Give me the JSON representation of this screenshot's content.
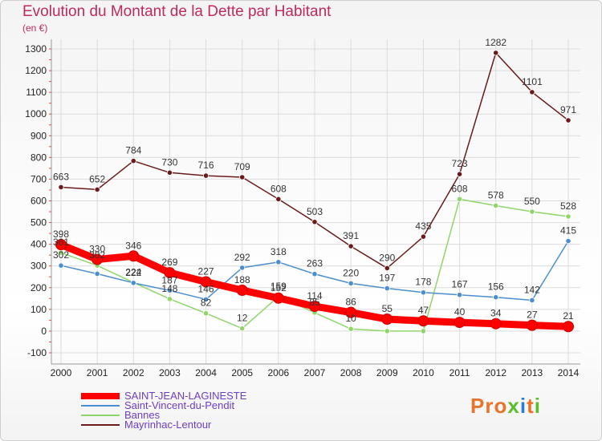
{
  "header": {
    "title": "Evolution du Montant de la Dette par Habitant",
    "subtitle": "(en €)"
  },
  "logo": {
    "text": "Proxiti",
    "colors": [
      "#e8732b",
      "#e8732b",
      "#e8732b",
      "#5bbf2a",
      "#2b7bd8",
      "#e8732b",
      "#5bbf2a"
    ]
  },
  "chart_data": {
    "type": "line",
    "title": "Evolution du Montant de la Dette par Habitant",
    "subtitle": "(en €)",
    "xlabel": "",
    "ylabel": "",
    "x": [
      2000,
      2001,
      2002,
      2003,
      2004,
      2005,
      2006,
      2007,
      2008,
      2009,
      2010,
      2011,
      2012,
      2013,
      2014
    ],
    "ylim": [
      -100,
      1300
    ],
    "yticks": [
      -100,
      0,
      100,
      200,
      300,
      400,
      500,
      600,
      700,
      800,
      900,
      1000,
      1100,
      1200,
      1300
    ],
    "grid": true,
    "legend_position": "bottom-left",
    "series": [
      {
        "name": "Mayrinhac-Lentour",
        "color": "#6b1a1a",
        "highlight": false,
        "values": [
          663,
          652,
          784,
          730,
          716,
          709,
          608,
          503,
          391,
          290,
          435,
          723,
          1282,
          1101,
          971
        ]
      },
      {
        "name": "Bannes",
        "color": "#8fd66a",
        "highlight": false,
        "values": [
          361,
          302,
          224,
          148,
          82,
          12,
          159,
          85,
          10,
          0,
          0,
          608,
          578,
          550,
          528
        ]
      },
      {
        "name": "Saint-Vincent-du-Pendit",
        "color": "#4b8ed0",
        "highlight": false,
        "values": [
          302,
          264,
          222,
          187,
          146,
          292,
          318,
          263,
          220,
          197,
          178,
          167,
          156,
          142,
          415
        ]
      },
      {
        "name": "SAINT-JEAN-LAGINESTE",
        "color": "#ff0000",
        "highlight": true,
        "values": [
          398,
          330,
          346,
          269,
          227,
          188,
          152,
          114,
          86,
          55,
          47,
          40,
          34,
          27,
          21
        ]
      }
    ],
    "data_labels": {
      "Mayrinhac-Lentour": [
        "663",
        "652",
        "784",
        "730",
        "716",
        "709",
        "608",
        "503",
        "391",
        "290",
        "435",
        "723",
        "1282",
        "1101",
        "971"
      ],
      "Bannes": [
        "361",
        "302",
        "224",
        "148",
        "82",
        "12",
        "159",
        "85",
        "10",
        "",
        "",
        "608",
        "578",
        "550",
        "528"
      ],
      "Saint-Vincent-du-Pendit": [
        "302",
        "",
        "222",
        "187",
        "146",
        "292",
        "318",
        "263",
        "220",
        "197",
        "178",
        "167",
        "156",
        "142",
        "415"
      ],
      "SAINT-JEAN-LAGINESTE": [
        "398",
        "330",
        "346",
        "269",
        "227",
        "188",
        "152",
        "114",
        "86",
        "55",
        "47",
        "40",
        "34",
        "27",
        "21"
      ]
    },
    "legend_order": [
      "SAINT-JEAN-LAGINESTE",
      "Saint-Vincent-du-Pendit",
      "Bannes",
      "Mayrinhac-Lentour"
    ]
  }
}
